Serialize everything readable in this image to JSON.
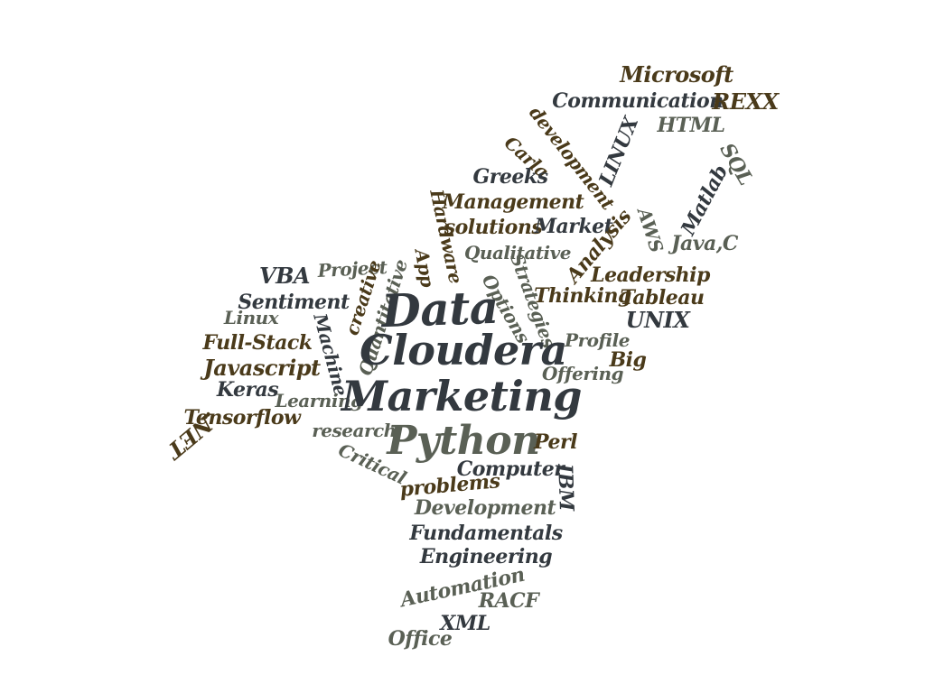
{
  "colors": {
    "dark_slate": "#33393f",
    "olive_brown": "#4a3a1a",
    "gray_green": "#5a6055",
    "background": "#ffffff"
  },
  "words": [
    {
      "text": "Microsoft",
      "color": "olive_brown"
    },
    {
      "text": "Communication",
      "color": "dark_slate"
    },
    {
      "text": "REXX",
      "color": "olive_brown"
    },
    {
      "text": "HTML",
      "color": "gray_green"
    },
    {
      "text": "development",
      "color": "olive_brown"
    },
    {
      "text": "LINUX",
      "color": "dark_slate"
    },
    {
      "text": "Carla",
      "color": "olive_brown"
    },
    {
      "text": "SQL",
      "color": "gray_green"
    },
    {
      "text": "Greeks",
      "color": "dark_slate"
    },
    {
      "text": "Matlab",
      "color": "dark_slate"
    },
    {
      "text": "Management",
      "color": "olive_brown"
    },
    {
      "text": "AWS",
      "color": "gray_green"
    },
    {
      "text": "Hardware",
      "color": "olive_brown"
    },
    {
      "text": "solutions",
      "color": "olive_brown"
    },
    {
      "text": "Market",
      "color": "dark_slate"
    },
    {
      "text": "Java,C",
      "color": "gray_green"
    },
    {
      "text": "Qualitative",
      "color": "gray_green"
    },
    {
      "text": "Analysis",
      "color": "olive_brown"
    },
    {
      "text": "App",
      "color": "olive_brown"
    },
    {
      "text": "Project",
      "color": "gray_green"
    },
    {
      "text": "VBA",
      "color": "dark_slate"
    },
    {
      "text": "Leadership",
      "color": "olive_brown"
    },
    {
      "text": "Options",
      "color": "gray_green"
    },
    {
      "text": "Strategies",
      "color": "gray_green"
    },
    {
      "text": "Thinking",
      "color": "olive_brown"
    },
    {
      "text": "Tableau",
      "color": "olive_brown"
    },
    {
      "text": "Sentiment",
      "color": "dark_slate"
    },
    {
      "text": "creative",
      "color": "olive_brown"
    },
    {
      "text": "Quantitative",
      "color": "gray_green"
    },
    {
      "text": "Data",
      "color": "dark_slate"
    },
    {
      "text": "UNIX",
      "color": "dark_slate"
    },
    {
      "text": "Linux",
      "color": "gray_green"
    },
    {
      "text": "Machine",
      "color": "dark_slate"
    },
    {
      "text": "Full-Stack",
      "color": "olive_brown"
    },
    {
      "text": "Cloudera",
      "color": "dark_slate"
    },
    {
      "text": "Profile",
      "color": "gray_green"
    },
    {
      "text": "Big",
      "color": "olive_brown"
    },
    {
      "text": "Javascript",
      "color": "olive_brown"
    },
    {
      "text": "Offering",
      "color": "gray_green"
    },
    {
      "text": "Keras",
      "color": "dark_slate"
    },
    {
      "text": "Learning",
      "color": "gray_green"
    },
    {
      "text": "Marketing",
      "color": "dark_slate"
    },
    {
      "text": "Tensorflow",
      "color": "olive_brown"
    },
    {
      "text": ".NET",
      "color": "olive_brown"
    },
    {
      "text": "research",
      "color": "gray_green"
    },
    {
      "text": "Python",
      "color": "gray_green"
    },
    {
      "text": "Perl",
      "color": "olive_brown"
    },
    {
      "text": "Critical",
      "color": "gray_green"
    },
    {
      "text": "Computer",
      "color": "dark_slate"
    },
    {
      "text": "IBM",
      "color": "dark_slate"
    },
    {
      "text": "problems",
      "color": "olive_brown"
    },
    {
      "text": "Development",
      "color": "gray_green"
    },
    {
      "text": "Fundamentals",
      "color": "dark_slate"
    },
    {
      "text": "Engineering",
      "color": "dark_slate"
    },
    {
      "text": "Automation",
      "color": "gray_green"
    },
    {
      "text": "RACF",
      "color": "gray_green"
    },
    {
      "text": "XML",
      "color": "dark_slate"
    },
    {
      "text": "Office",
      "color": "gray_green"
    }
  ]
}
